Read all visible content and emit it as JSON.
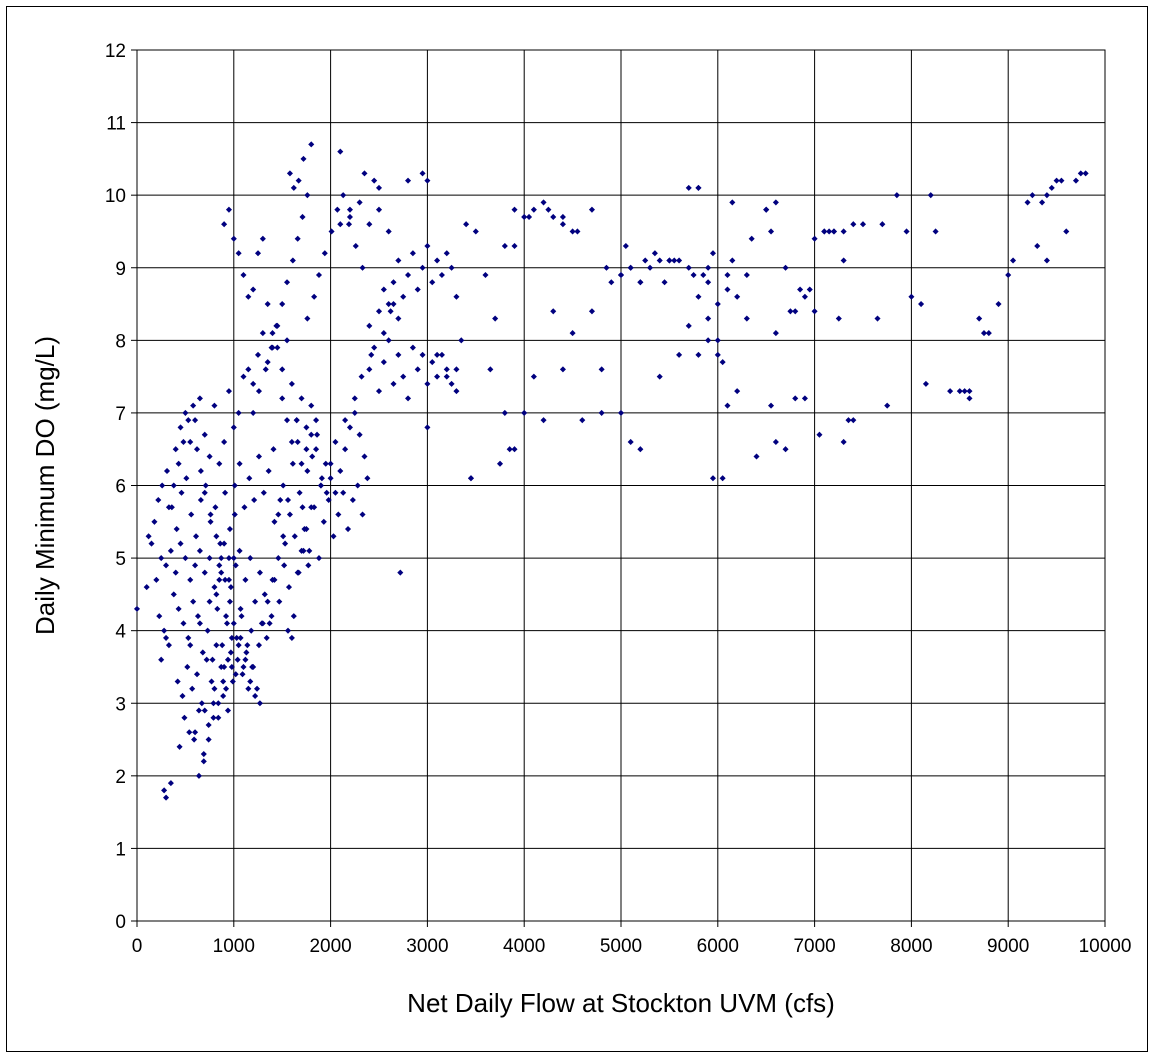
{
  "chart_data": {
    "type": "scatter",
    "title": "",
    "xlabel": "Net Daily Flow at Stockton UVM (cfs)",
    "ylabel": "Daily Minimum DO (mg/L)",
    "xlim": [
      0,
      10000
    ],
    "ylim": [
      0,
      12
    ],
    "x_ticks": [
      "0",
      "1000",
      "2000",
      "3000",
      "4000",
      "5000",
      "6000",
      "7000",
      "8000",
      "9000",
      "10000"
    ],
    "y_ticks": [
      "0",
      "1",
      "2",
      "3",
      "4",
      "5",
      "6",
      "7",
      "8",
      "9",
      "10",
      "11",
      "12"
    ],
    "grid": true,
    "legend": "none",
    "marker_color": "#00007f",
    "series": [
      {
        "x": [
          0,
          100,
          150,
          200,
          250,
          300,
          350,
          400,
          450,
          500,
          550,
          600,
          650,
          700,
          750,
          800,
          850,
          900,
          950,
          1000,
          120,
          180,
          220,
          260,
          310,
          360,
          410,
          460,
          510,
          560,
          610,
          660,
          710,
          760,
          810,
          860,
          910,
          960,
          1010,
          1060,
          230,
          280,
          330,
          380,
          430,
          480,
          530,
          580,
          630,
          680,
          730,
          780,
          830,
          880,
          930,
          980,
          1030,
          1080,
          1130,
          1180,
          250,
          300,
          420,
          470,
          520,
          570,
          620,
          670,
          720,
          770,
          820,
          870,
          920,
          970,
          1020,
          1070,
          1120,
          1170,
          1220,
          1270,
          440,
          490,
          540,
          590,
          640,
          690,
          740,
          790,
          840,
          890,
          940,
          990,
          1040,
          1090,
          1140,
          1190,
          1240,
          1290,
          1340,
          1390,
          400,
          450,
          500,
          550,
          600,
          650,
          700,
          750,
          800,
          850,
          900,
          950,
          1000,
          1050,
          1100,
          1150,
          1200,
          1250,
          1300,
          1350,
          1400,
          1450,
          1500,
          1550,
          1600,
          1650,
          1700,
          1750,
          1800,
          1850,
          1900,
          1950,
          2000,
          2050,
          2100,
          2150,
          2200,
          2250,
          2300,
          2350,
          1420,
          1480,
          1530,
          1580,
          1630,
          1680,
          1730,
          1780,
          1830,
          1880,
          1930,
          1980,
          2030,
          2080,
          2130,
          2180,
          2230,
          2280,
          2330,
          2380,
          1010,
          1060,
          1110,
          1160,
          1210,
          1260,
          1310,
          1360,
          1410,
          1460,
          1510,
          1560,
          1610,
          1660,
          1710,
          1760,
          1810,
          1860,
          1910,
          1960,
          820,
          870,
          920,
          970,
          1020,
          1070,
          1120,
          1170,
          1220,
          1270,
          1320,
          1370,
          1420,
          1470,
          1520,
          1570,
          1620,
          1670,
          1720,
          1770,
          1580,
          1620,
          1670,
          1720,
          1760,
          1800,
          2100,
          2200,
          2350,
          2450,
          2500,
          2800,
          2950,
          3000,
          2100,
          2200,
          2300,
          2400,
          2500,
          2600,
          2600,
          2650,
          2700,
          2750,
          2800,
          2850,
          2900,
          2950,
          3000,
          3050,
          3100,
          3150,
          3200,
          3250,
          3300,
          2400,
          2500,
          2550,
          2650,
          2700,
          2400,
          2450,
          2500,
          2550,
          2600,
          2650,
          2700,
          2750,
          2800,
          2850,
          2900,
          2950,
          3000,
          3050,
          3100,
          3150,
          3200,
          3250,
          3300,
          3350,
          3400,
          3500,
          3600,
          3700,
          3800,
          3900,
          4000,
          4100,
          4200,
          4300,
          4400,
          4500,
          3450,
          3800,
          3900,
          4100,
          4200,
          4600,
          4800,
          3000,
          2720,
          3100,
          3200,
          3300,
          3450,
          3650,
          3750,
          3850,
          4000,
          4300,
          4400,
          4500,
          4700,
          4800,
          4900,
          5000,
          5100,
          5200,
          5300,
          5400,
          5000,
          5100,
          5200,
          5400,
          5500,
          5600,
          5700,
          5800,
          5900,
          6000,
          6100,
          6200,
          6300,
          5850,
          5900,
          5950,
          6000,
          6050,
          6100,
          5800,
          5700,
          5800,
          5900,
          6000,
          6500,
          6600,
          6700,
          6800,
          6900,
          7000,
          7100,
          7200,
          7300,
          7400,
          6550,
          6600,
          6850,
          7000,
          7250,
          7300,
          7050,
          7100,
          7200,
          7300,
          7400,
          7500,
          7650,
          7700,
          7750,
          7850,
          7950,
          8000,
          8100,
          8150,
          8200,
          8250,
          8400,
          8500,
          8550,
          8600,
          8600,
          8700,
          8750,
          8800,
          8900,
          9000,
          9050,
          9200,
          9250,
          9300,
          9350,
          9400,
          9450,
          9500,
          9550,
          9600,
          9700,
          9750,
          9800,
          9400,
          5000,
          5100,
          5200,
          5450,
          5500,
          5600,
          5700,
          5800,
          5900,
          6050,
          6100,
          6150,
          6200,
          6300,
          6400,
          6500,
          6600,
          6700,
          6800,
          6900,
          640,
          690,
          740,
          790,
          840,
          890,
          940,
          980,
          600,
          700,
          800,
          900,
          550,
          650,
          750,
          850,
          950,
          300,
          350,
          280,
          330,
          380,
          430,
          480,
          530,
          580,
          620,
          660,
          700,
          760,
          820,
          870,
          910,
          960,
          1000,
          1050,
          1100,
          1150,
          1200,
          1260,
          1300,
          1350,
          1400,
          1460,
          1510,
          1560,
          1600,
          1660,
          1700,
          1750,
          1800,
          1900,
          2000,
          2050,
          2150,
          2250,
          2320,
          2420,
          2550,
          2620,
          1200,
          1260,
          1330,
          1390,
          1440,
          1500,
          1550,
          1610,
          1660,
          1710,
          1760,
          1830,
          1880,
          1940,
          2010,
          2070,
          2130,
          2190,
          2260,
          2330,
          900,
          950,
          1000,
          1050,
          1100,
          1150,
          1200,
          1250,
          1300,
          1350,
          1400,
          1450,
          1500,
          1550,
          1600,
          1650,
          1700,
          1750,
          1800,
          1850,
          3900,
          4050,
          4250,
          4400,
          4550,
          4700,
          4850,
          5050,
          5250,
          5350,
          5550,
          5750,
          5950,
          6150,
          6350,
          6550,
          6750,
          6950,
          7150,
          7350
        ],
        "y": [
          4.3,
          4.6,
          5.2,
          4.7,
          5.0,
          4.9,
          5.1,
          4.8,
          5.2,
          5.0,
          4.7,
          4.9,
          5.1,
          4.8,
          5.0,
          4.6,
          4.9,
          5.2,
          4.7,
          5.0,
          5.3,
          5.5,
          5.8,
          6.0,
          6.2,
          5.7,
          5.4,
          5.9,
          6.1,
          5.6,
          5.3,
          5.8,
          6.0,
          5.5,
          5.7,
          5.2,
          5.9,
          5.4,
          5.6,
          5.1,
          4.2,
          4.0,
          3.8,
          4.5,
          4.3,
          4.1,
          3.9,
          4.4,
          4.2,
          3.7,
          4.0,
          3.6,
          4.3,
          3.8,
          4.1,
          3.5,
          3.9,
          4.2,
          3.7,
          4.0,
          3.6,
          3.9,
          3.3,
          3.1,
          3.5,
          3.2,
          3.4,
          3.0,
          3.6,
          3.3,
          3.8,
          3.5,
          3.2,
          3.7,
          3.4,
          3.9,
          3.6,
          3.3,
          3.1,
          3.0,
          2.4,
          2.8,
          2.6,
          2.5,
          2.9,
          2.3,
          2.7,
          3.0,
          2.8,
          3.1,
          2.9,
          3.3,
          3.6,
          3.4,
          3.8,
          3.5,
          3.2,
          4.1,
          3.9,
          4.2,
          6.5,
          6.8,
          7.0,
          6.6,
          6.9,
          7.2,
          6.7,
          6.4,
          7.1,
          6.3,
          6.6,
          7.3,
          6.8,
          7.0,
          7.5,
          7.6,
          7.4,
          7.8,
          8.1,
          7.7,
          7.9,
          8.2,
          7.6,
          8.0,
          7.4,
          6.9,
          7.2,
          6.8,
          7.1,
          6.5,
          6.0,
          6.3,
          6.1,
          5.9,
          6.2,
          6.5,
          6.8,
          7.0,
          6.7,
          6.4,
          5.5,
          5.8,
          5.2,
          5.6,
          5.3,
          5.9,
          5.4,
          5.1,
          5.7,
          5.0,
          5.5,
          5.8,
          5.3,
          5.6,
          5.9,
          5.4,
          5.8,
          6.0,
          5.6,
          6.1,
          6.0,
          6.3,
          5.7,
          6.1,
          5.8,
          6.4,
          5.9,
          6.2,
          6.5,
          5.6,
          6.0,
          5.8,
          6.3,
          6.6,
          5.7,
          6.2,
          6.4,
          6.7,
          6.1,
          5.9,
          4.5,
          4.8,
          4.2,
          4.6,
          4.9,
          4.3,
          4.7,
          5.0,
          4.4,
          4.8,
          4.5,
          4.1,
          4.7,
          4.4,
          4.9,
          4.6,
          4.2,
          4.8,
          5.1,
          4.9,
          10.3,
          10.1,
          10.2,
          10.5,
          10.0,
          10.7,
          10.6,
          9.8,
          10.3,
          10.2,
          10.1,
          10.2,
          10.3,
          10.2,
          9.6,
          9.7,
          9.9,
          9.6,
          9.8,
          9.5,
          8.5,
          8.8,
          9.1,
          8.6,
          8.9,
          9.2,
          8.7,
          9.0,
          9.3,
          8.8,
          9.1,
          8.9,
          9.2,
          9.0,
          8.6,
          8.2,
          8.4,
          8.7,
          8.5,
          8.3,
          7.6,
          7.9,
          7.3,
          7.7,
          8.0,
          7.4,
          7.8,
          7.5,
          7.2,
          7.9,
          7.6,
          7.8,
          7.4,
          7.7,
          7.5,
          7.8,
          7.6,
          7.4,
          7.3,
          8.0,
          9.6,
          9.5,
          8.9,
          8.3,
          9.3,
          9.8,
          9.7,
          9.8,
          9.9,
          9.7,
          9.6,
          9.5,
          6.1,
          7.0,
          6.5,
          7.5,
          6.9,
          6.9,
          7.0,
          6.8,
          4.8,
          7.8,
          7.5,
          7.6,
          6.1,
          7.6,
          6.3,
          6.5,
          7.0,
          8.4,
          7.6,
          8.1,
          8.4,
          7.6,
          8.8,
          8.9,
          9.0,
          8.8,
          9.0,
          9.1,
          7.0,
          6.6,
          6.5,
          7.5,
          9.1,
          9.1,
          8.2,
          8.6,
          8.3,
          8.5,
          8.9,
          8.6,
          8.3,
          8.9,
          8.8,
          9.2,
          7.8,
          7.7,
          7.1,
          10.1,
          10.1,
          10.1,
          9.0,
          8.0,
          9.8,
          9.9,
          9.0,
          8.4,
          8.6,
          9.4,
          9.5,
          9.5,
          9.1,
          9.6,
          7.1,
          8.1,
          8.7,
          8.4,
          8.3,
          6.6,
          6.7,
          9.5,
          9.5,
          9.5,
          6.9,
          9.6,
          8.3,
          9.6,
          7.1,
          10.0,
          9.5,
          8.6,
          8.5,
          7.4,
          10.0,
          9.5,
          7.3,
          7.3,
          7.3,
          7.2,
          7.3,
          8.3,
          8.1,
          8.1,
          8.5,
          8.9,
          9.1,
          9.9,
          10.0,
          9.3,
          9.9,
          10.0,
          10.1,
          10.2,
          10.2,
          9.5,
          10.2,
          10.3,
          10.3,
          9.1,
          8.9,
          9.0,
          8.8,
          8.8,
          9.1,
          7.8,
          9.0,
          7.8,
          8.0,
          6.1,
          8.7,
          9.9,
          7.3,
          8.9,
          6.4,
          9.8,
          6.6,
          6.5,
          7.2,
          7.2,
          2.0,
          2.2,
          2.5,
          2.8,
          3.0,
          3.3,
          3.6,
          3.9,
          2.6,
          2.9,
          3.2,
          3.5,
          3.8,
          4.1,
          4.4,
          4.7,
          5.0,
          1.7,
          1.9,
          1.8,
          5.7,
          6.0,
          6.3,
          6.6,
          6.9,
          7.1,
          6.5,
          6.2,
          5.9,
          5.6,
          5.3,
          5.0,
          4.7,
          4.4,
          4.1,
          3.8,
          3.5,
          3.2,
          3.5,
          3.8,
          4.1,
          4.4,
          4.7,
          5.0,
          5.3,
          4.0,
          3.9,
          4.8,
          5.1,
          5.4,
          5.7,
          6.0,
          6.3,
          6.6,
          6.9,
          7.2,
          7.5,
          7.8,
          8.1,
          8.4,
          7.0,
          7.3,
          7.6,
          7.9,
          8.2,
          8.5,
          8.8,
          9.1,
          9.4,
          9.7,
          8.3,
          8.6,
          8.9,
          9.2,
          9.5,
          9.8,
          10.0,
          9.6,
          9.3,
          9.0,
          9.6,
          9.8,
          9.4,
          9.2,
          8.9,
          8.6,
          8.7,
          9.2,
          9.4,
          8.5,
          8.1,
          7.9,
          7.2,
          6.9,
          6.6,
          6.9,
          6.3,
          6.5,
          6.7,
          6.9,
          9.3,
          9.7,
          9.8,
          9.7,
          9.5,
          9.8,
          9.0,
          9.3,
          9.1,
          9.2,
          9.1,
          8.9,
          6.1,
          9.1,
          9.4,
          9.5,
          8.4,
          8.7,
          9.5,
          6.9
        ]
      }
    ]
  }
}
